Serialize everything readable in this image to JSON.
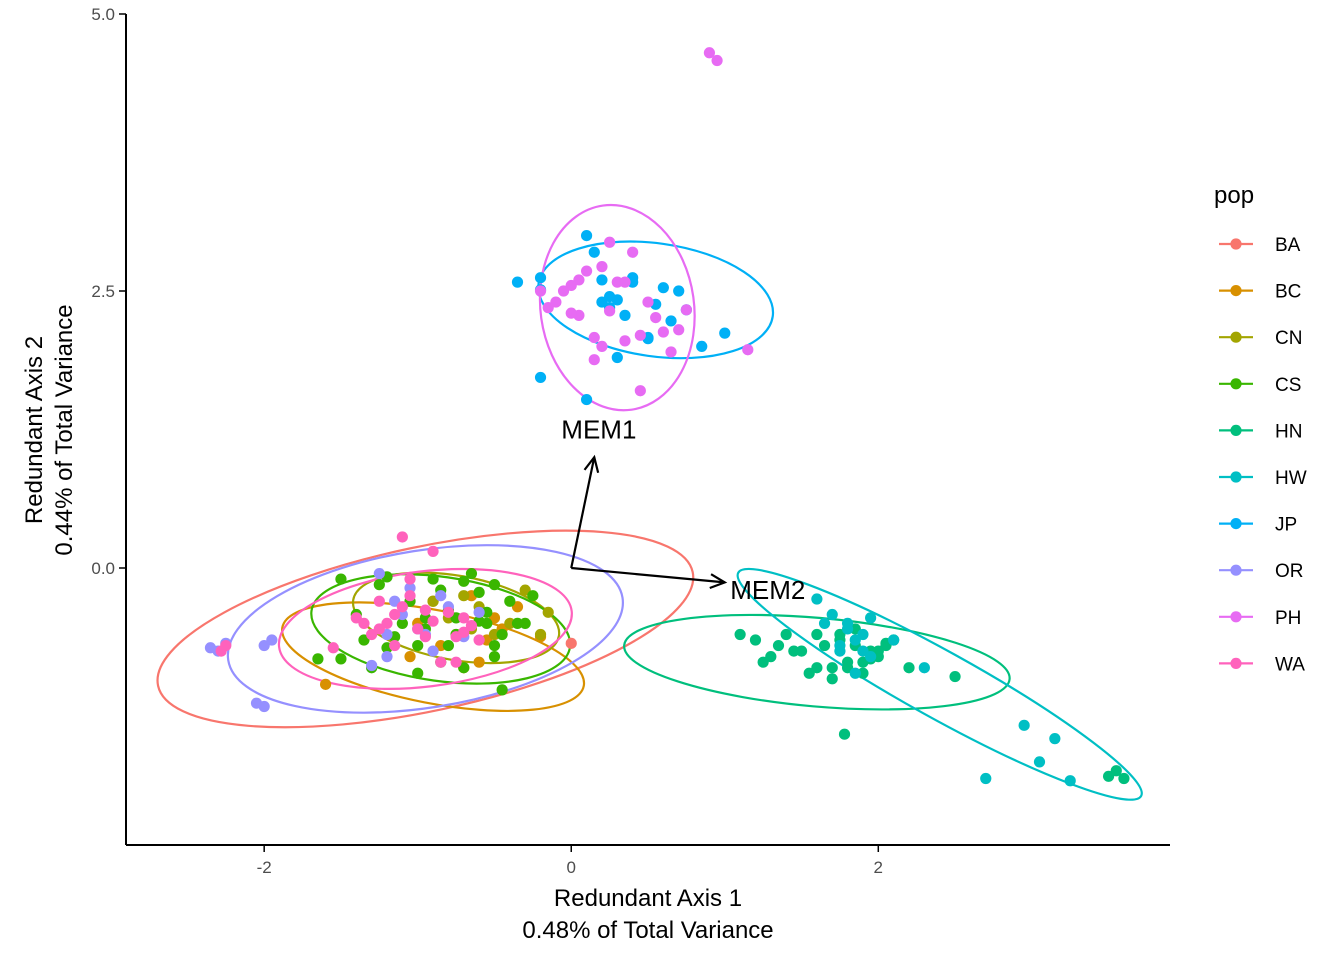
{
  "chart_data": {
    "type": "scatter",
    "title": "",
    "xlabel": [
      "Redundant Axis 1",
      "0.48% of Total Variance"
    ],
    "ylabel": [
      "Redundant Axis 2",
      "0.44% of Total Variance"
    ],
    "xlim": [
      -2.9,
      3.9
    ],
    "ylim": [
      -2.5,
      5.0
    ],
    "x_ticks": [
      -2,
      0,
      2
    ],
    "x_tick_labels": [
      "-2",
      "0",
      "2"
    ],
    "y_ticks": [
      0,
      2.5,
      5
    ],
    "y_tick_labels": [
      "0.0",
      "2.5",
      "5.0"
    ],
    "grid": false,
    "legend": {
      "title": "pop",
      "placement": "right",
      "entries": [
        "BA",
        "BC",
        "CN",
        "CS",
        "HN",
        "HW",
        "JP",
        "OR",
        "PH",
        "WA"
      ]
    },
    "arrows": [
      {
        "label": "MEM1",
        "from": [
          0,
          0
        ],
        "to": [
          0.15,
          1.0
        ],
        "label_at": [
          0.18,
          1.25
        ]
      },
      {
        "label": "MEM2",
        "from": [
          0,
          0
        ],
        "to": [
          1.0,
          -0.13
        ],
        "label_at": [
          1.28,
          -0.2
        ]
      }
    ],
    "series": [
      {
        "name": "BA",
        "color": "#F8766D",
        "ellipse": {
          "cx": -0.95,
          "cy": -0.55,
          "rx": 1.78,
          "ry": 0.74,
          "angle_deg": -12
        },
        "x": [
          0.0
        ],
        "y": [
          -0.68
        ]
      },
      {
        "name": "BC",
        "color": "#D89000",
        "ellipse": {
          "cx": -0.9,
          "cy": -0.8,
          "rx": 1.0,
          "ry": 0.42,
          "angle_deg": 11
        },
        "x": [
          -1.6,
          -0.7,
          -0.6,
          -0.55,
          -0.85,
          -1.0,
          -0.5,
          -0.35,
          -0.2,
          -0.75,
          -0.9,
          -0.65,
          -1.05,
          -0.45
        ],
        "y": [
          -1.05,
          -0.9,
          -0.85,
          -0.65,
          -0.7,
          -0.5,
          -0.45,
          -0.35,
          -0.62,
          -0.6,
          -0.3,
          -0.25,
          -0.8,
          -0.55
        ]
      },
      {
        "name": "CN",
        "color": "#A3A500",
        "ellipse": {
          "cx": -0.75,
          "cy": -0.45,
          "rx": 0.68,
          "ry": 0.38,
          "angle_deg": 10
        },
        "x": [
          -0.15,
          -0.4,
          -0.65,
          -0.8,
          -0.5,
          -0.2,
          -0.6,
          -0.9,
          -0.7,
          -0.3
        ],
        "y": [
          -0.4,
          -0.5,
          -0.55,
          -0.45,
          -0.6,
          -0.6,
          -0.35,
          -0.3,
          -0.25,
          -0.2
        ]
      },
      {
        "name": "CS",
        "color": "#39B600",
        "ellipse": {
          "cx": -0.85,
          "cy": -0.55,
          "rx": 0.85,
          "ry": 0.47,
          "angle_deg": 8
        },
        "x": [
          -1.65,
          -1.5,
          -1.2,
          -1.0,
          -0.85,
          -0.7,
          -0.5,
          -0.35,
          -0.25,
          -1.1,
          -0.95,
          -0.75,
          -0.55,
          -0.4,
          -0.3,
          -1.35,
          -1.05,
          -0.8,
          -0.6,
          -0.45,
          -1.25,
          -0.9,
          -0.65,
          -0.5,
          -1.4,
          -1.15,
          -0.75,
          -0.45,
          -0.5,
          -0.85,
          -0.6,
          -1.3,
          -1.0,
          -0.7,
          -1.2,
          -0.95,
          -1.5,
          -0.55,
          -0.8
        ],
        "y": [
          -0.82,
          -0.82,
          -0.72,
          -0.7,
          -0.85,
          -0.9,
          -0.8,
          -0.5,
          -0.25,
          -0.5,
          -0.55,
          -0.45,
          -0.4,
          -0.3,
          -0.5,
          -0.65,
          -0.3,
          -0.38,
          -0.22,
          -0.6,
          -0.15,
          -0.1,
          -0.05,
          -0.15,
          -0.42,
          -0.62,
          -0.6,
          -1.1,
          -0.7,
          -0.2,
          -0.48,
          -0.9,
          -0.95,
          -0.12,
          -0.08,
          -0.45,
          -0.1,
          -0.5,
          -0.7
        ]
      },
      {
        "name": "HN",
        "color": "#00BF7D",
        "ellipse": {
          "cx": 1.6,
          "cy": -0.85,
          "rx": 1.26,
          "ry": 0.4,
          "angle_deg": 5
        },
        "x": [
          1.1,
          1.2,
          1.3,
          1.45,
          1.6,
          1.7,
          1.8,
          1.9,
          2.0,
          2.1,
          1.25,
          1.4,
          1.5,
          1.65,
          1.75,
          1.85,
          1.95,
          2.05,
          2.2,
          2.5,
          1.55,
          1.7,
          1.8,
          1.9,
          2.0,
          1.75,
          1.85,
          1.95,
          2.05,
          1.78,
          3.5,
          3.55,
          3.6,
          1.6,
          1.35
        ],
        "y": [
          -0.6,
          -0.65,
          -0.8,
          -0.75,
          -0.9,
          -0.9,
          -0.85,
          -0.95,
          -0.8,
          -0.65,
          -0.85,
          -0.6,
          -0.75,
          -0.7,
          -0.65,
          -0.55,
          -0.75,
          -0.7,
          -0.9,
          -0.98,
          -0.95,
          -1.0,
          -0.9,
          -0.85,
          -0.75,
          -0.6,
          -0.7,
          -0.82,
          -0.68,
          -1.5,
          -1.88,
          -1.83,
          -1.9,
          -0.6,
          -0.7
        ]
      },
      {
        "name": "HW",
        "color": "#00BFC4",
        "ellipse": {
          "cx": 2.4,
          "cy": -1.05,
          "rx": 1.5,
          "ry": 0.3,
          "angle_deg": 29
        },
        "x": [
          1.6,
          1.7,
          1.8,
          1.9,
          1.75,
          1.85,
          1.95,
          1.65,
          1.8,
          2.1,
          1.9,
          2.3,
          2.7,
          2.95,
          3.05,
          3.15,
          3.25,
          1.85,
          1.75,
          1.95
        ],
        "y": [
          -0.28,
          -0.42,
          -0.5,
          -0.6,
          -0.7,
          -0.65,
          -0.8,
          -0.5,
          -0.55,
          -0.65,
          -0.75,
          -0.9,
          -1.9,
          -1.42,
          -1.75,
          -1.54,
          -1.92,
          -0.95,
          -0.75,
          -0.45
        ]
      },
      {
        "name": "JP",
        "color": "#00B0F6",
        "ellipse": {
          "cx": 0.55,
          "cy": 2.42,
          "rx": 0.77,
          "ry": 0.51,
          "angle_deg": 8
        },
        "x": [
          -0.35,
          -0.2,
          -0.2,
          0.1,
          0.15,
          0.2,
          0.25,
          0.3,
          0.35,
          0.4,
          0.5,
          0.55,
          0.6,
          0.7,
          0.75,
          0.85,
          1.0,
          0.3,
          0.5,
          0.2,
          0.4,
          -0.2,
          0.1,
          0.25,
          0.65
        ],
        "y": [
          2.58,
          2.62,
          2.51,
          3.0,
          2.85,
          2.6,
          2.45,
          2.42,
          2.28,
          2.62,
          2.07,
          2.38,
          2.53,
          2.5,
          2.33,
          2.0,
          2.12,
          1.9,
          2.08,
          2.4,
          2.58,
          1.72,
          1.52,
          2.35,
          2.23
        ]
      },
      {
        "name": "OR",
        "color": "#9590FF",
        "ellipse": {
          "cx": -0.95,
          "cy": -0.55,
          "rx": 1.3,
          "ry": 0.71,
          "angle_deg": -9
        },
        "x": [
          -2.35,
          -2.3,
          -2.25,
          -2.0,
          -1.95,
          -2.05,
          -2.0,
          -1.3,
          -1.2,
          -1.1,
          -1.0,
          -0.9,
          -0.8,
          -0.7,
          -1.25,
          -1.15,
          -0.85,
          -1.05,
          -0.6,
          -0.95,
          -1.2
        ],
        "y": [
          -0.72,
          -0.75,
          -0.68,
          -0.7,
          -0.65,
          -1.22,
          -1.25,
          -0.88,
          -0.6,
          -0.42,
          -0.55,
          -0.75,
          -0.35,
          -0.62,
          -0.05,
          -0.3,
          -0.25,
          -0.18,
          -0.4,
          -0.6,
          -0.8
        ]
      },
      {
        "name": "PH",
        "color": "#E76BF3",
        "ellipse": {
          "cx": 0.3,
          "cy": 2.35,
          "rx": 0.5,
          "ry": 0.93,
          "angle_deg": -8
        },
        "x": [
          -0.2,
          -0.15,
          -0.1,
          -0.05,
          0.0,
          0.05,
          0.1,
          0.15,
          0.2,
          0.25,
          0.3,
          0.35,
          0.4,
          0.45,
          0.5,
          0.55,
          0.6,
          0.65,
          0.7,
          0.75,
          0.9,
          0.95,
          1.15,
          0.0,
          0.2,
          0.45,
          0.15,
          0.35,
          0.05,
          0.25
        ],
        "y": [
          2.5,
          2.35,
          2.4,
          2.5,
          2.55,
          2.28,
          2.68,
          2.08,
          2.72,
          2.32,
          2.58,
          2.05,
          2.85,
          1.6,
          2.4,
          2.26,
          2.13,
          1.95,
          2.15,
          2.33,
          4.65,
          4.58,
          1.97,
          2.3,
          2.0,
          2.1,
          1.88,
          2.58,
          2.6,
          2.94
        ]
      },
      {
        "name": "WA",
        "color": "#FF62BC",
        "ellipse": {
          "cx": -0.95,
          "cy": -0.55,
          "rx": 0.96,
          "ry": 0.52,
          "angle_deg": -7
        },
        "x": [
          -1.55,
          -1.4,
          -1.3,
          -1.2,
          -1.1,
          -1.0,
          -0.9,
          -0.8,
          -0.7,
          -0.6,
          -1.35,
          -1.25,
          -1.15,
          -1.05,
          -0.95,
          -0.85,
          -0.75,
          -0.65,
          -1.1,
          -0.9,
          -0.7,
          -1.05,
          -1.15,
          -0.75,
          -1.25,
          -0.95,
          -2.25,
          -2.28
        ],
        "y": [
          -0.72,
          -0.45,
          -0.6,
          -0.5,
          -0.35,
          -0.55,
          -0.48,
          -0.4,
          -0.58,
          -0.65,
          -0.5,
          -0.3,
          -0.42,
          -0.25,
          -0.38,
          -0.85,
          -0.62,
          -0.52,
          0.28,
          0.15,
          -0.45,
          -0.1,
          -0.7,
          -0.85,
          -0.55,
          -0.62,
          -0.7,
          -0.75
        ]
      }
    ]
  }
}
